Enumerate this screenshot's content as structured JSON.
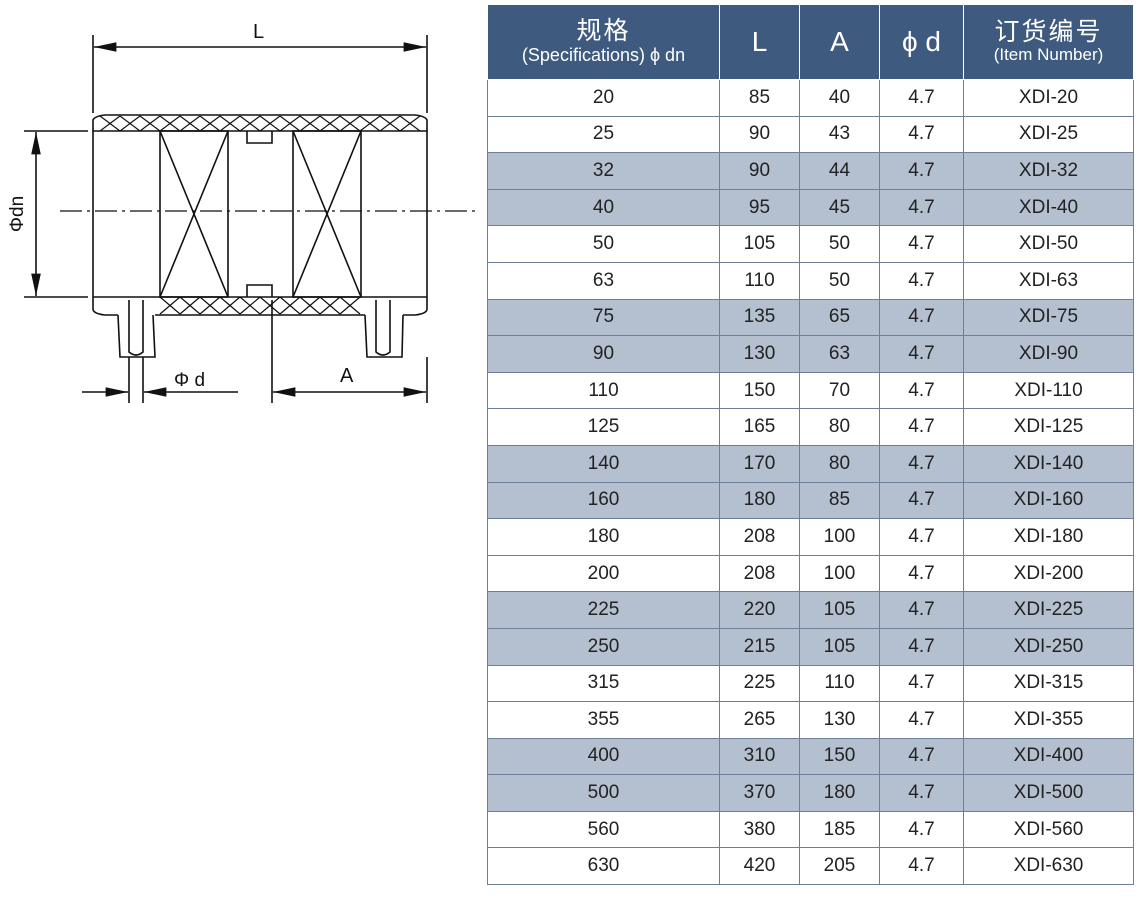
{
  "drawing": {
    "label_L": "L",
    "label_dn": "Φdn",
    "label_d": "Φ d",
    "label_A": "A"
  },
  "colors": {
    "header": "#3f5a7f",
    "shaded_row": "#b4c0d0"
  },
  "table": {
    "headers": [
      {
        "cn": "规格",
        "en": "(Specifications) ϕ dn"
      },
      {
        "cn": "L"
      },
      {
        "cn": "A"
      },
      {
        "cn": "ϕ d"
      },
      {
        "cn": "订货编号",
        "en": "(Item Number)"
      }
    ],
    "rows": [
      [
        "20",
        "85",
        "40",
        "4.7",
        "XDI-20"
      ],
      [
        "25",
        "90",
        "43",
        "4.7",
        "XDI-25"
      ],
      [
        "32",
        "90",
        "44",
        "4.7",
        "XDI-32"
      ],
      [
        "40",
        "95",
        "45",
        "4.7",
        "XDI-40"
      ],
      [
        "50",
        "105",
        "50",
        "4.7",
        "XDI-50"
      ],
      [
        "63",
        "110",
        "50",
        "4.7",
        "XDI-63"
      ],
      [
        "75",
        "135",
        "65",
        "4.7",
        "XDI-75"
      ],
      [
        "90",
        "130",
        "63",
        "4.7",
        "XDI-90"
      ],
      [
        "110",
        "150",
        "70",
        "4.7",
        "XDI-110"
      ],
      [
        "125",
        "165",
        "80",
        "4.7",
        "XDI-125"
      ],
      [
        "140",
        "170",
        "80",
        "4.7",
        "XDI-140"
      ],
      [
        "160",
        "180",
        "85",
        "4.7",
        "XDI-160"
      ],
      [
        "180",
        "208",
        "100",
        "4.7",
        "XDI-180"
      ],
      [
        "200",
        "208",
        "100",
        "4.7",
        "XDI-200"
      ],
      [
        "225",
        "220",
        "105",
        "4.7",
        "XDI-225"
      ],
      [
        "250",
        "215",
        "105",
        "4.7",
        "XDI-250"
      ],
      [
        "315",
        "225",
        "110",
        "4.7",
        "XDI-315"
      ],
      [
        "355",
        "265",
        "130",
        "4.7",
        "XDI-355"
      ],
      [
        "400",
        "310",
        "150",
        "4.7",
        "XDI-400"
      ],
      [
        "500",
        "370",
        "180",
        "4.7",
        "XDI-500"
      ],
      [
        "560",
        "380",
        "185",
        "4.7",
        "XDI-560"
      ],
      [
        "630",
        "420",
        "205",
        "4.7",
        "XDI-630"
      ]
    ]
  }
}
